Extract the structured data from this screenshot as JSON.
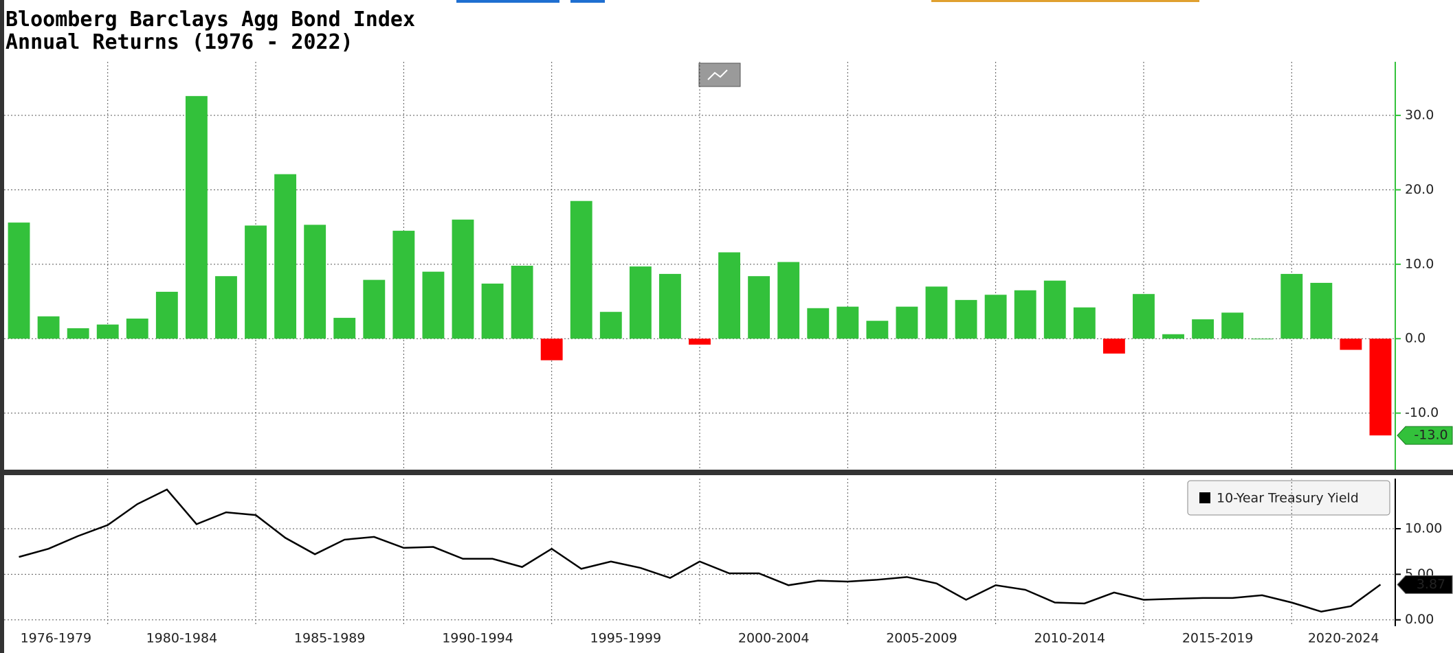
{
  "chart_data": [
    {
      "type": "bar",
      "title": "Bloomberg Barclays Agg Bond Index",
      "subtitle": "Annual Returns (1976 - 2022)",
      "color": "#33c13b",
      "negative_color": "#ff0000",
      "values": [
        15.6,
        3.0,
        1.4,
        1.9,
        2.7,
        6.3,
        32.6,
        8.4,
        15.2,
        22.1,
        15.3,
        2.8,
        7.9,
        14.5,
        9.0,
        16.0,
        7.4,
        9.8,
        -2.9,
        18.5,
        3.6,
        9.7,
        8.7,
        -0.8,
        11.6,
        8.4,
        10.3,
        4.1,
        4.3,
        2.4,
        4.3,
        7.0,
        5.2,
        5.9,
        6.5,
        7.8,
        4.2,
        -2.0,
        6.0,
        0.6,
        2.6,
        3.5,
        0.0,
        8.7,
        7.5,
        -1.5,
        -13.0
      ],
      "value_labels": [
        null,
        null,
        null,
        null,
        null,
        null,
        null,
        null,
        null,
        null,
        null,
        null,
        null,
        null,
        null,
        null,
        null,
        null,
        null,
        null,
        null,
        null,
        null,
        null,
        null,
        null,
        null,
        null,
        null,
        null,
        null,
        null,
        null,
        null,
        null,
        null,
        null,
        null,
        null,
        null,
        null,
        null,
        null,
        null,
        null,
        null,
        "-13.0"
      ],
      "ylim": [
        -17.6,
        37.2
      ],
      "yticks": [
        {
          "value": -10,
          "label": "-10.0"
        },
        {
          "value": 0,
          "label": "0.0"
        },
        {
          "value": 10,
          "label": "10.0"
        },
        {
          "value": 20,
          "label": "20.0"
        },
        {
          "value": 30,
          "label": "30.0"
        }
      ],
      "grid": true
    },
    {
      "type": "line",
      "xtick_labels": [
        "1976-1979",
        "1980-1984",
        "1985-1989",
        "1990-1994",
        "1995-1999",
        "2000-2004",
        "2005-2009",
        "2010-2014",
        "2015-2019",
        "2020-2024"
      ],
      "series": [
        {
          "name": "10-Year Treasury Yield",
          "color": "#000000",
          "values": [
            6.9,
            7.8,
            9.2,
            10.4,
            12.7,
            14.3,
            10.5,
            11.8,
            11.5,
            9.0,
            7.2,
            8.8,
            9.1,
            7.9,
            8.0,
            6.7,
            6.7,
            5.8,
            7.8,
            5.6,
            6.4,
            5.7,
            4.6,
            6.4,
            5.1,
            5.1,
            3.8,
            4.3,
            4.2,
            4.4,
            4.7,
            4.0,
            2.2,
            3.8,
            3.3,
            1.9,
            1.8,
            3.0,
            2.2,
            2.3,
            2.4,
            2.4,
            2.7,
            1.9,
            0.9,
            1.5,
            3.87
          ]
        }
      ],
      "ylim": [
        -0.7,
        15.5
      ],
      "yticks": [
        {
          "value": 0,
          "label": "0.00"
        },
        {
          "value": 5,
          "label": "5.00"
        },
        {
          "value": 10,
          "label": "10.00"
        }
      ],
      "grid": true,
      "legend": "top-right"
    }
  ]
}
